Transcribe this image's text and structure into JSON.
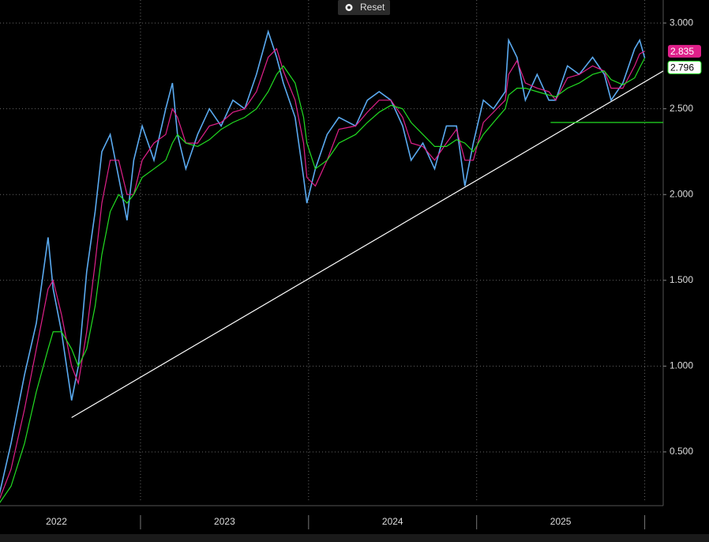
{
  "chart_data": {
    "type": "line",
    "x": [
      2022.16,
      2022.23,
      2022.31,
      2022.38,
      2022.45,
      2022.48,
      2022.53,
      2022.59,
      2022.63,
      2022.68,
      2022.73,
      2022.77,
      2022.82,
      2022.87,
      2022.92,
      2022.96,
      2023.01,
      2023.08,
      2023.15,
      2023.19,
      2023.22,
      2023.27,
      2023.34,
      2023.41,
      2023.48,
      2023.55,
      2023.62,
      2023.69,
      2023.76,
      2023.81,
      2023.85,
      2023.92,
      2023.97,
      2023.99,
      2024.04,
      2024.11,
      2024.18,
      2024.28,
      2024.35,
      2024.42,
      2024.49,
      2024.56,
      2024.61,
      2024.68,
      2024.75,
      2024.82,
      2024.88,
      2024.93,
      2024.98,
      2025.04,
      2025.1,
      2025.17,
      2025.19,
      2025.24,
      2025.29,
      2025.36,
      2025.43,
      2025.47,
      2025.54,
      2025.61,
      2025.69,
      2025.76,
      2025.8,
      2025.87,
      2025.94,
      2025.97,
      2026.0
    ],
    "series": [
      {
        "color": "#5aaaf0",
        "values": [
          0.25,
          0.55,
          0.95,
          1.25,
          1.75,
          1.45,
          1.2,
          0.8,
          1.0,
          1.55,
          1.9,
          2.25,
          2.35,
          2.1,
          1.85,
          2.2,
          2.4,
          2.2,
          2.5,
          2.65,
          2.35,
          2.15,
          2.35,
          2.5,
          2.4,
          2.55,
          2.5,
          2.7,
          2.95,
          2.8,
          2.65,
          2.45,
          2.1,
          1.95,
          2.15,
          2.35,
          2.45,
          2.4,
          2.55,
          2.6,
          2.55,
          2.4,
          2.2,
          2.3,
          2.15,
          2.4,
          2.4,
          2.05,
          2.3,
          2.55,
          2.5,
          2.6,
          2.9,
          2.8,
          2.55,
          2.7,
          2.55,
          2.55,
          2.75,
          2.7,
          2.8,
          2.7,
          2.55,
          2.65,
          2.85,
          2.9,
          2.796
        ]
      },
      {
        "color": "#e0208a",
        "values": [
          0.22,
          0.4,
          0.75,
          1.1,
          1.45,
          1.5,
          1.3,
          1.0,
          0.9,
          1.2,
          1.6,
          1.95,
          2.2,
          2.2,
          2.0,
          2.0,
          2.2,
          2.3,
          2.35,
          2.5,
          2.45,
          2.3,
          2.3,
          2.4,
          2.42,
          2.48,
          2.5,
          2.6,
          2.8,
          2.85,
          2.72,
          2.55,
          2.3,
          2.1,
          2.05,
          2.2,
          2.38,
          2.4,
          2.48,
          2.55,
          2.55,
          2.45,
          2.3,
          2.28,
          2.2,
          2.3,
          2.38,
          2.2,
          2.2,
          2.42,
          2.48,
          2.55,
          2.7,
          2.78,
          2.65,
          2.62,
          2.6,
          2.55,
          2.68,
          2.7,
          2.75,
          2.72,
          2.62,
          2.62,
          2.75,
          2.82,
          2.835
        ]
      },
      {
        "color": "#22dd22",
        "values": [
          0.2,
          0.3,
          0.55,
          0.85,
          1.1,
          1.2,
          1.2,
          1.1,
          1.0,
          1.1,
          1.35,
          1.65,
          1.9,
          2.0,
          1.95,
          2.0,
          2.1,
          2.15,
          2.2,
          2.3,
          2.35,
          2.3,
          2.28,
          2.32,
          2.38,
          2.42,
          2.45,
          2.5,
          2.6,
          2.7,
          2.75,
          2.65,
          2.45,
          2.3,
          2.15,
          2.2,
          2.3,
          2.35,
          2.42,
          2.48,
          2.52,
          2.5,
          2.42,
          2.35,
          2.28,
          2.28,
          2.32,
          2.3,
          2.25,
          2.35,
          2.42,
          2.5,
          2.58,
          2.62,
          2.62,
          2.6,
          2.58,
          2.57,
          2.62,
          2.65,
          2.7,
          2.72,
          2.67,
          2.64,
          2.68,
          2.74,
          2.796
        ]
      }
    ],
    "xlim": [
      2022.164,
      2026.11
    ],
    "ylim": [
      0.205,
      3.134
    ],
    "yticks": [
      {
        "value": 0.5,
        "label": "0.500"
      },
      {
        "value": 1,
        "label": "1.000"
      },
      {
        "value": 1.5,
        "label": "1.500"
      },
      {
        "value": 2,
        "label": "2.000"
      },
      {
        "value": 2.5,
        "label": "2.500"
      },
      {
        "value": 3,
        "label": "3.000"
      }
    ],
    "xticks": [
      {
        "value": 2022.5,
        "label": "2022"
      },
      {
        "value": 2023.5,
        "label": "2023"
      },
      {
        "value": 2024.5,
        "label": "2024"
      },
      {
        "value": 2025.5,
        "label": "2025"
      }
    ],
    "year_boundaries": [
      2023,
      2024,
      2025,
      2026
    ],
    "trendline": {
      "color": "#ffffff",
      "x": [
        2022.59,
        2026.11
      ],
      "y": [
        0.7,
        2.72
      ]
    },
    "support_line": {
      "color": "#22dd22",
      "x": [
        2025.44,
        2026.11
      ],
      "y": [
        2.42,
        2.42
      ]
    },
    "grid": true
  },
  "ui": {
    "reset_button": "Reset"
  }
}
